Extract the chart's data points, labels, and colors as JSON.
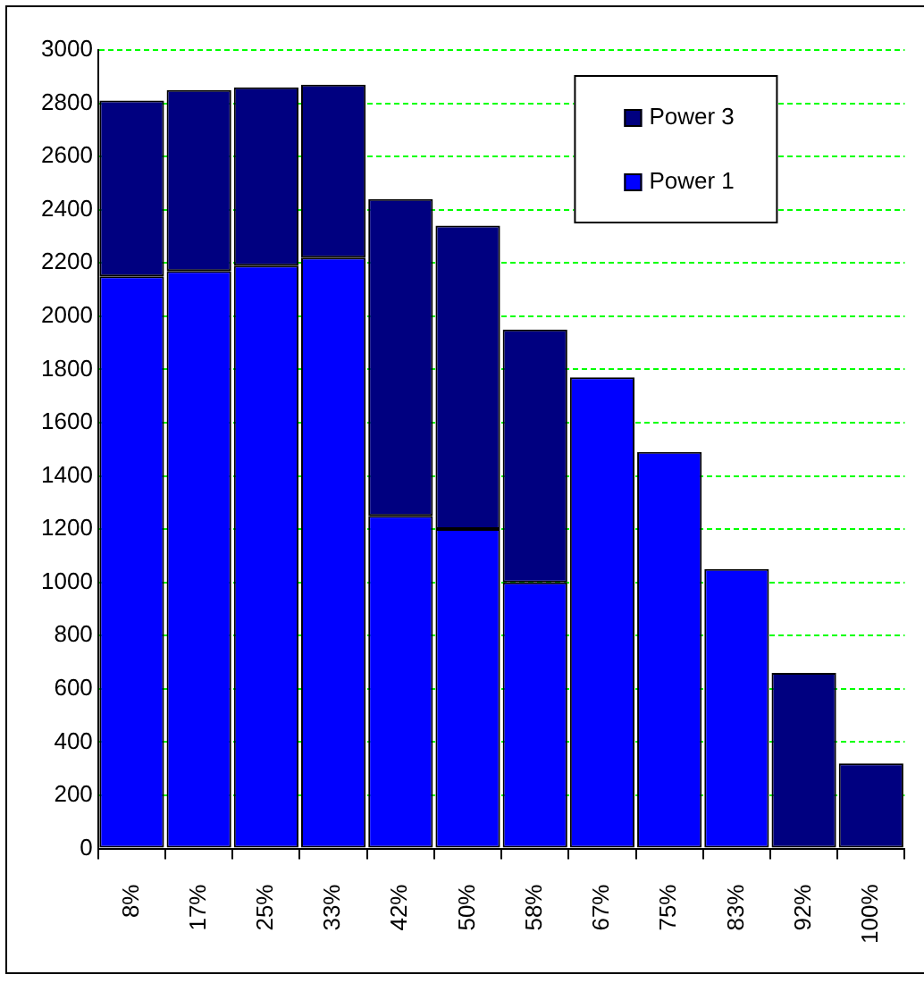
{
  "chart_data": {
    "type": "bar",
    "stacked": true,
    "categories": [
      "8%",
      "17%",
      "25%",
      "33%",
      "42%",
      "50%",
      "58%",
      "67%",
      "75%",
      "83%",
      "92%",
      "100%"
    ],
    "series": [
      {
        "name": "Power 1",
        "color": "#0000ff",
        "values": [
          2150,
          2170,
          2190,
          2220,
          1250,
          1200,
          1000,
          1770,
          1490,
          1050,
          null,
          null
        ]
      },
      {
        "name": "Power 3",
        "color": "#000080",
        "values": [
          660,
          680,
          670,
          650,
          1190,
          1140,
          950,
          null,
          null,
          null,
          660,
          320
        ]
      }
    ],
    "ylim": [
      0,
      3000
    ],
    "yticks": [
      0,
      200,
      400,
      600,
      800,
      1000,
      1200,
      1400,
      1600,
      1800,
      2000,
      2200,
      2400,
      2600,
      2800,
      3000
    ],
    "grid": "y",
    "legend": "top right"
  }
}
